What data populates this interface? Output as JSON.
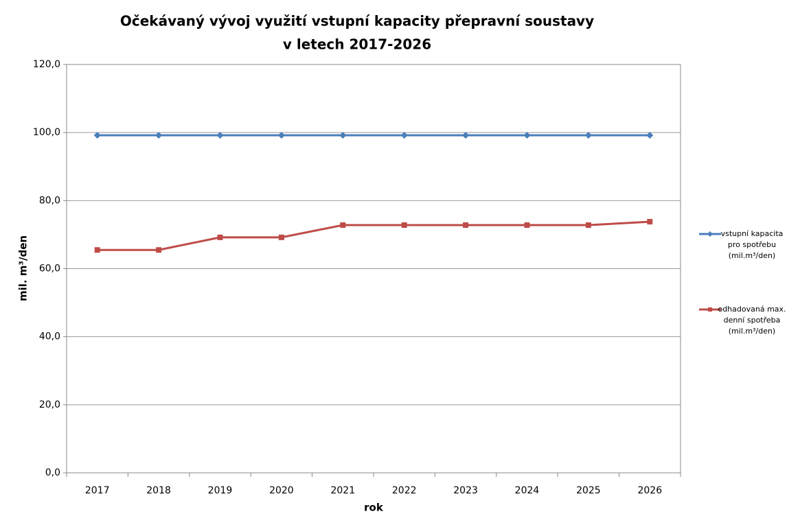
{
  "chart_data": {
    "type": "line",
    "title": [
      "Očekávaný vývoj využití vstupní kapacity přepravní soustavy",
      "v letech 2017-2026"
    ],
    "x_label": "rok",
    "y_label": "mil. m³/den",
    "categories": [
      "2017",
      "2018",
      "2019",
      "2020",
      "2021",
      "2022",
      "2023",
      "2024",
      "2025",
      "2026"
    ],
    "series": [
      {
        "name": "vstupní kapacita pro spotřebu (mil.m³/den)",
        "color": "#4a7ebb",
        "marker": "diamond",
        "values": [
          99.2,
          99.2,
          99.2,
          99.2,
          99.2,
          99.2,
          99.2,
          99.2,
          99.2,
          99.2
        ]
      },
      {
        "name": "odhadovaná max. denní spotřeba (mil.m³/den)",
        "color": "#be4b48",
        "marker": "square",
        "values": [
          65.5,
          65.5,
          69.2,
          69.2,
          72.8,
          72.8,
          72.8,
          72.8,
          72.8,
          73.8
        ]
      }
    ],
    "ylim": [
      0,
      120
    ],
    "yticks": [
      {
        "value": 0,
        "label": "0,0"
      },
      {
        "value": 20,
        "label": "20,0"
      },
      {
        "value": 40,
        "label": "40,0"
      },
      {
        "value": 60,
        "label": "60,0"
      },
      {
        "value": 80,
        "label": "80,0"
      },
      {
        "value": 100,
        "label": "100,0"
      },
      {
        "value": 120,
        "label": "120,0"
      }
    ],
    "grid": true,
    "legend": "right"
  }
}
